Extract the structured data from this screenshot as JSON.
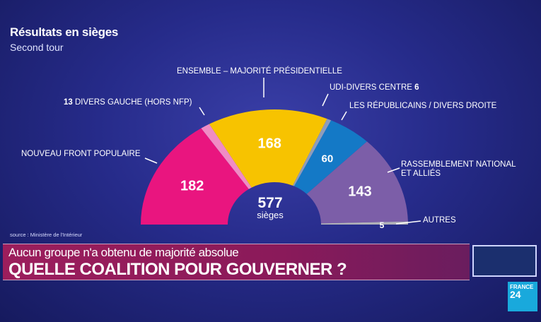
{
  "header": {
    "title": "Résultats en sièges",
    "subtitle": "Second tour"
  },
  "chart_data": {
    "type": "pie",
    "variant": "hemicycle",
    "title": "Résultats en sièges",
    "subtitle": "Second tour",
    "total": 577,
    "total_label": "sièges",
    "series": [
      {
        "name": "NOUVEAU FRONT POPULAIRE",
        "value": 182,
        "color": "#e9157f"
      },
      {
        "name": "DIVERS GAUCHE (HORS NFP)",
        "value": 13,
        "color": "#f08cc4"
      },
      {
        "name": "ENSEMBLE – MAJORITÉ PRÉSIDENTIELLE",
        "value": 168,
        "color": "#f7c300"
      },
      {
        "name": "UDI-DIVERS CENTRE",
        "value": 6,
        "color": "#8d9cbc"
      },
      {
        "name": "LES RÉPUBLICAINS / DIVERS DROITE",
        "value": 60,
        "color": "#1479c6"
      },
      {
        "name": "RASSEMBLEMENT NATIONAL ET ALLIÉS",
        "value": 143,
        "color": "#7c5ea8"
      },
      {
        "name": "AUTRES",
        "value": 5,
        "color": "#b0b0b8"
      }
    ]
  },
  "labels": {
    "nfp": "NOUVEAU FRONT POPULAIRE",
    "dg_value": "13",
    "dg": "DIVERS GAUCHE (HORS NFP)",
    "ens": "ENSEMBLE – MAJORITÉ PRÉSIDENTIELLE",
    "udi": "UDI-DIVERS CENTRE",
    "udi_value": "6",
    "lr": "LES RÉPUBLICAINS / DIVERS DROITE",
    "rn1": "RASSEMBLEMENT NATIONAL",
    "rn2": "ET ALLIÉS",
    "autres": "AUTRES"
  },
  "source": "source : Ministère de l'Intérieur",
  "banner": {
    "subheadline": "Aucun groupe n'a obtenu de majorité absolue",
    "headline": "QUELLE COALITION POUR GOUVERNER ?"
  },
  "logo": {
    "line1": "FRANCE",
    "line2": "24"
  }
}
